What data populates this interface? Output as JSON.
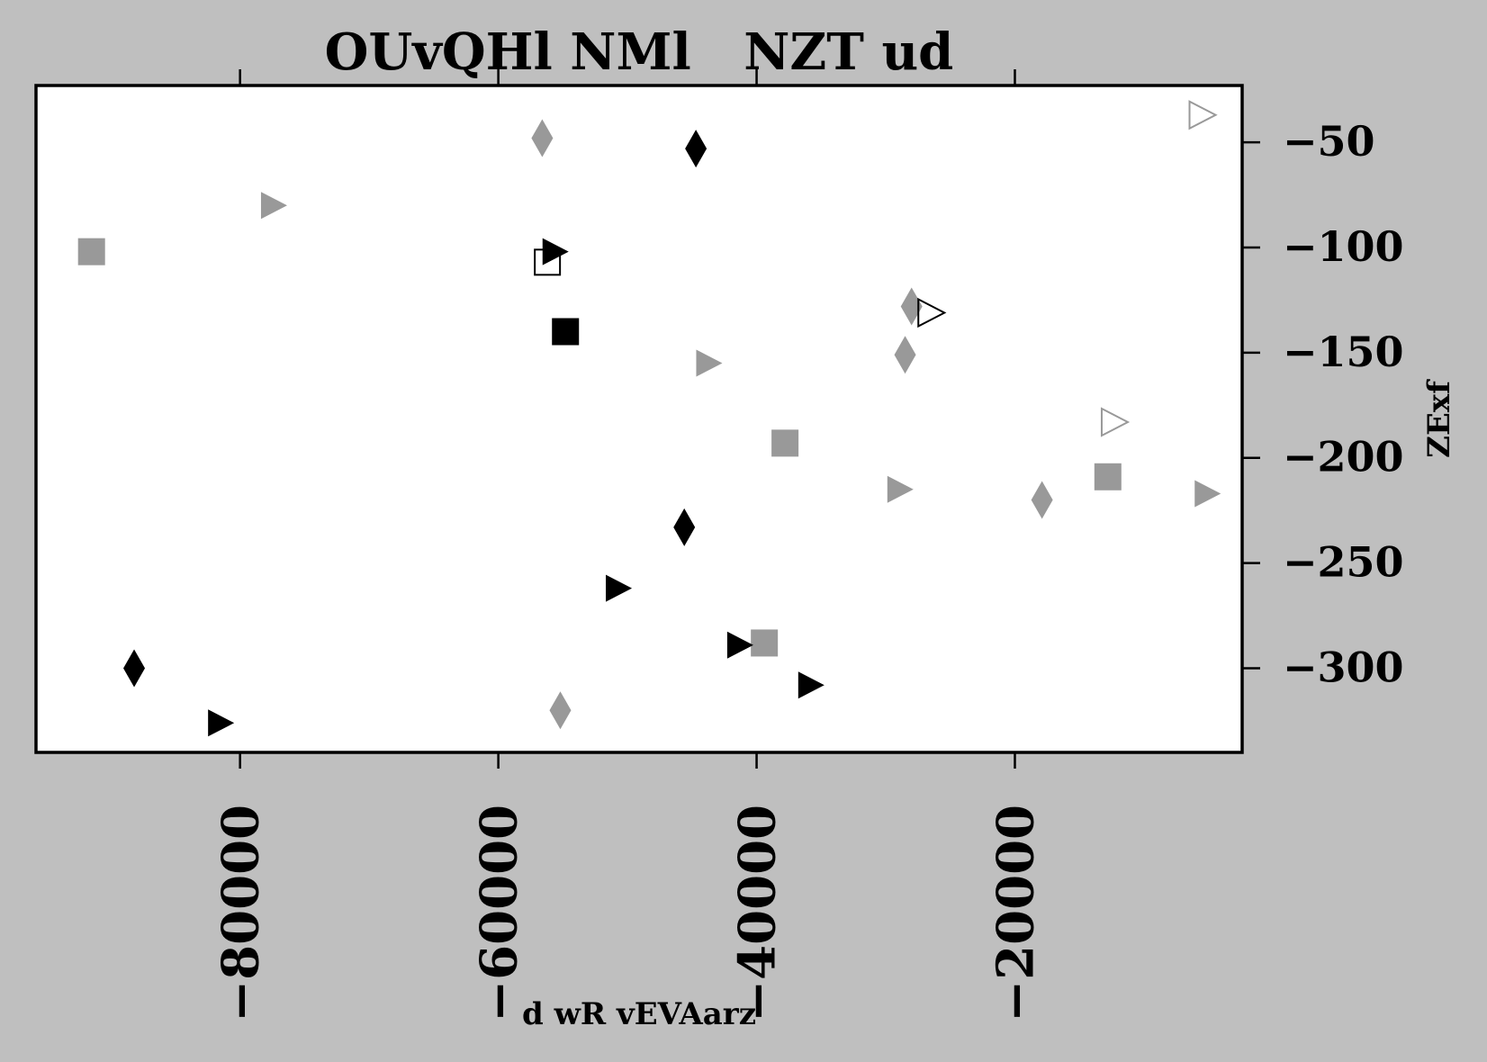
{
  "chart_data": {
    "type": "scatter",
    "title": "OUvQHl NMl   NZT ud",
    "xlabel": "d wR vEVAarz",
    "ylabel": "ZExf",
    "xlim": [
      -95800,
      -2400
    ],
    "ylim": [
      -340,
      -23
    ],
    "x_ticks": [
      -80000,
      -60000,
      -40000,
      -20000
    ],
    "x_tick_labels": [
      "−80000",
      "−60000",
      "−40000",
      "−20000"
    ],
    "y_ticks": [
      -50,
      -100,
      -150,
      -200,
      -250,
      -300
    ],
    "y_tick_labels": [
      "−50",
      "−100",
      "−150",
      "−200",
      "−250",
      "−300"
    ],
    "y_axis_side": "right",
    "x_ticks_on_top": true,
    "grid": false,
    "legend": "none",
    "colors": {
      "background": "#bfbfbf",
      "plot_area": "#ffffff",
      "black": "#000000",
      "gray": "#999999"
    },
    "series": [
      {
        "marker": "square-filled",
        "color": "#999999",
        "points": [
          [
            -91500,
            -102
          ],
          [
            -37800,
            -193
          ],
          [
            -12800,
            -209
          ],
          [
            -39400,
            -288
          ]
        ]
      },
      {
        "marker": "square-filled",
        "color": "#000000",
        "points": [
          [
            -54800,
            -140
          ]
        ]
      },
      {
        "marker": "square-open",
        "color": "#000000",
        "points": [
          [
            -56200,
            -107
          ]
        ]
      },
      {
        "marker": "diamond-filled",
        "color": "#999999",
        "points": [
          [
            -56600,
            -48
          ],
          [
            -28000,
            -128
          ],
          [
            -28500,
            -151
          ],
          [
            -17900,
            -220
          ],
          [
            -55200,
            -320
          ]
        ]
      },
      {
        "marker": "diamond-filled",
        "color": "#000000",
        "points": [
          [
            -44700,
            -53
          ],
          [
            -45600,
            -233
          ],
          [
            -88200,
            -300
          ]
        ]
      },
      {
        "marker": "triangle-right-filled",
        "color": "#999999",
        "points": [
          [
            -77400,
            -80
          ],
          [
            -43700,
            -155
          ],
          [
            -28900,
            -215
          ],
          [
            -5100,
            -217
          ]
        ]
      },
      {
        "marker": "triangle-right-filled",
        "color": "#000000",
        "points": [
          [
            -55600,
            -102
          ],
          [
            -50700,
            -262
          ],
          [
            -41300,
            -289
          ],
          [
            -35800,
            -308
          ],
          [
            -81500,
            -326
          ]
        ]
      },
      {
        "marker": "triangle-right-open",
        "color": "#999999",
        "points": [
          [
            -5500,
            -37
          ],
          [
            -12300,
            -183
          ]
        ]
      },
      {
        "marker": "triangle-right-open",
        "color": "#000000",
        "points": [
          [
            -26500,
            -131
          ]
        ]
      }
    ]
  }
}
